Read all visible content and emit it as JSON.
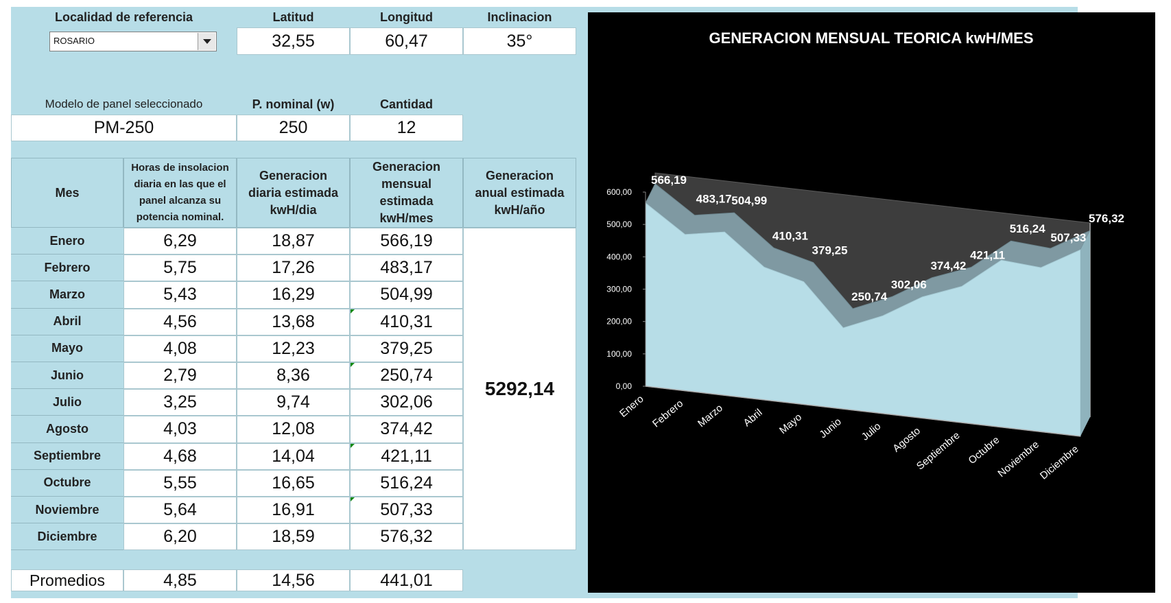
{
  "location": {
    "label": "Localidad de referencia",
    "selected": "ROSARIO",
    "lat_label": "Latitud",
    "lat_value": "32,55",
    "lon_label": "Longitud",
    "lon_value": "60,47",
    "incl_label": "Inclinacion",
    "incl_value": "35°"
  },
  "panel": {
    "model_label": "Modelo de panel seleccionado",
    "model_value": "PM-250",
    "power_label": "P. nominal (w)",
    "power_value": "250",
    "qty_label": "Cantidad",
    "qty_value": "12"
  },
  "table": {
    "headers": {
      "mes": "Mes",
      "horas": "Horas de insolacion diaria en las que el panel alcanza su potencia nominal.",
      "diaria": "Generacion diaria estimada kwH/dia",
      "mensual": "Generacion mensual estimada kwH/mes",
      "anual": "Generacion anual  estimada kwH/año"
    },
    "rows": [
      {
        "mes": "Enero",
        "horas": "6,29",
        "diaria": "18,87",
        "mensual": "566,19"
      },
      {
        "mes": "Febrero",
        "horas": "5,75",
        "diaria": "17,26",
        "mensual": "483,17"
      },
      {
        "mes": "Marzo",
        "horas": "5,43",
        "diaria": "16,29",
        "mensual": "504,99"
      },
      {
        "mes": "Abril",
        "horas": "4,56",
        "diaria": "13,68",
        "mensual": "410,31"
      },
      {
        "mes": "Mayo",
        "horas": "4,08",
        "diaria": "12,23",
        "mensual": "379,25"
      },
      {
        "mes": "Junio",
        "horas": "2,79",
        "diaria": "8,36",
        "mensual": "250,74"
      },
      {
        "mes": "Julio",
        "horas": "3,25",
        "diaria": "9,74",
        "mensual": "302,06"
      },
      {
        "mes": "Agosto",
        "horas": "4,03",
        "diaria": "12,08",
        "mensual": "374,42"
      },
      {
        "mes": "Septiembre",
        "horas": "4,68",
        "diaria": "14,04",
        "mensual": "421,11"
      },
      {
        "mes": "Octubre",
        "horas": "5,55",
        "diaria": "16,65",
        "mensual": "516,24"
      },
      {
        "mes": "Noviembre",
        "horas": "5,64",
        "diaria": "16,91",
        "mensual": "507,33"
      },
      {
        "mes": "Diciembre",
        "horas": "6,20",
        "diaria": "18,59",
        "mensual": "576,32"
      }
    ],
    "anual_value": "5292,14",
    "averages": {
      "label": "Promedios",
      "horas": "4,85",
      "diaria": "14,56",
      "mensual": "441,01"
    }
  },
  "chart_data": {
    "type": "area",
    "title": "GENERACION MENSUAL TEORICA  kwH/MES",
    "categories": [
      "Enero",
      "Febrero",
      "Marzo",
      "Abril",
      "Mayo",
      "Junio",
      "Julio",
      "Agosto",
      "Septiembre",
      "Octubre",
      "Noviembre",
      "Diciembre"
    ],
    "values": [
      566.19,
      483.17,
      504.99,
      410.31,
      379.25,
      250.74,
      302.06,
      374.42,
      421.11,
      516.24,
      507.33,
      576.32
    ],
    "data_labels": [
      "566,19",
      "483,17",
      "504,99",
      "410,31",
      "379,25",
      "250,74",
      "302,06",
      "374,42",
      "421,11",
      "516,24",
      "507,33",
      "576,32"
    ],
    "y_ticks": [
      "0,00",
      "100,00",
      "200,00",
      "300,00",
      "400,00",
      "500,00",
      "600,00"
    ],
    "ylim": [
      0,
      600
    ],
    "grid": false,
    "legend": "none",
    "colors": {
      "background": "#000000",
      "fill": "#b7dde7",
      "back_wall": "#3d3d3d",
      "text": "#ffffff"
    }
  }
}
